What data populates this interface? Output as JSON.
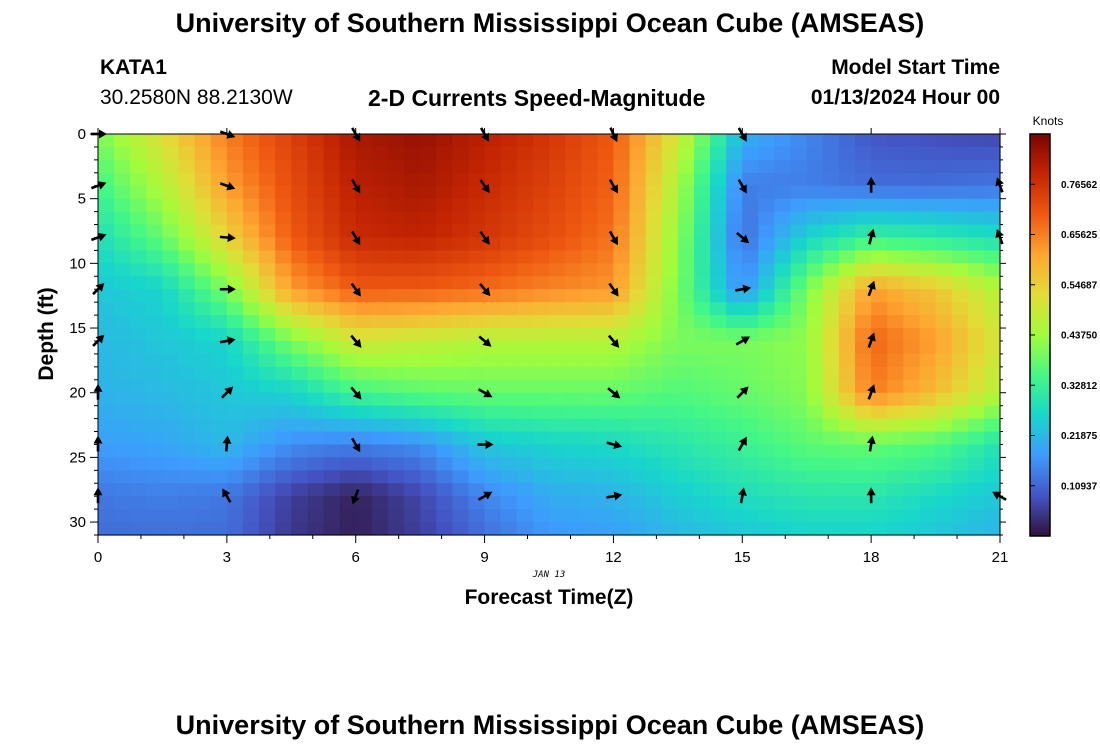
{
  "header": {
    "title": "University of Southern Mississippi Ocean Cube (AMSEAS)",
    "station": "KATA1",
    "coords": "30.2580N  88.2130W",
    "plot_title": "2-D Currents Speed-Magnitude",
    "model_start_label": "Model Start Time",
    "model_start_value": "01/13/2024 Hour 00"
  },
  "footer": {
    "title": "University of Southern Mississippi Ocean Cube (AMSEAS)"
  },
  "colors": {
    "colormap": [
      "#30123b",
      "#4454c4",
      "#3e9bfe",
      "#18d6cb",
      "#46f884",
      "#a2fc3c",
      "#e1dd37",
      "#fea632",
      "#ef5911",
      "#c42503",
      "#7a0403"
    ]
  },
  "chart_data": {
    "type": "heatmap",
    "title": "2-D Currents Speed-Magnitude",
    "xlabel": "Forecast Time(Z)",
    "ylabel": "Depth (ft)",
    "date_label": "JAN 13",
    "xlim": [
      0,
      21
    ],
    "ylim": [
      31,
      0
    ],
    "x_ticks": [
      0,
      3,
      6,
      9,
      12,
      15,
      18,
      21
    ],
    "y_ticks": [
      0,
      5,
      10,
      15,
      20,
      25,
      30
    ],
    "colorbar": {
      "label": "Knots",
      "range": [
        0,
        0.875
      ],
      "tick_values": [
        0.10937,
        0.21875,
        0.32812,
        0.4375,
        0.54687,
        0.65625,
        0.76562
      ],
      "tick_labels": [
        "0.10937",
        "0.21875",
        "0.32812",
        "0.43750",
        "0.54687",
        "0.65625",
        "0.76562"
      ]
    },
    "grid_time": [
      0,
      1.5,
      3,
      4.5,
      6,
      7.5,
      9,
      10.5,
      12,
      13.5,
      15,
      16.5,
      18,
      19.5,
      21
    ],
    "grid_depth": [
      0,
      4,
      8,
      12,
      16,
      20,
      24,
      28,
      31
    ],
    "speed_knots": [
      [
        0.4,
        0.52,
        0.66,
        0.74,
        0.82,
        0.84,
        0.8,
        0.76,
        0.7,
        0.5,
        0.21,
        0.15,
        0.09,
        0.08,
        0.07
      ],
      [
        0.34,
        0.46,
        0.62,
        0.72,
        0.8,
        0.82,
        0.78,
        0.74,
        0.69,
        0.45,
        0.14,
        0.14,
        0.12,
        0.12,
        0.13
      ],
      [
        0.28,
        0.38,
        0.54,
        0.7,
        0.78,
        0.79,
        0.76,
        0.72,
        0.67,
        0.42,
        0.12,
        0.26,
        0.33,
        0.31,
        0.28
      ],
      [
        0.24,
        0.26,
        0.4,
        0.62,
        0.7,
        0.7,
        0.68,
        0.65,
        0.63,
        0.4,
        0.16,
        0.4,
        0.62,
        0.56,
        0.46
      ],
      [
        0.22,
        0.24,
        0.26,
        0.4,
        0.5,
        0.48,
        0.46,
        0.46,
        0.46,
        0.4,
        0.4,
        0.42,
        0.69,
        0.62,
        0.5
      ],
      [
        0.21,
        0.22,
        0.24,
        0.26,
        0.34,
        0.37,
        0.38,
        0.38,
        0.38,
        0.36,
        0.38,
        0.41,
        0.66,
        0.58,
        0.46
      ],
      [
        0.18,
        0.19,
        0.22,
        0.16,
        0.14,
        0.16,
        0.24,
        0.26,
        0.27,
        0.3,
        0.33,
        0.37,
        0.38,
        0.36,
        0.29
      ],
      [
        0.13,
        0.14,
        0.13,
        0.06,
        0.02,
        0.07,
        0.15,
        0.2,
        0.21,
        0.25,
        0.28,
        0.3,
        0.3,
        0.27,
        0.24
      ],
      [
        0.12,
        0.12,
        0.12,
        0.05,
        0.02,
        0.06,
        0.12,
        0.17,
        0.18,
        0.22,
        0.24,
        0.26,
        0.26,
        0.24,
        0.21
      ]
    ],
    "vectors": [
      {
        "t": 0,
        "d": 0,
        "dir": 90
      },
      {
        "t": 0,
        "d": 4,
        "dir": 70
      },
      {
        "t": 0,
        "d": 8,
        "dir": 70
      },
      {
        "t": 0,
        "d": 12,
        "dir": 45
      },
      {
        "t": 0,
        "d": 16,
        "dir": 45
      },
      {
        "t": 0,
        "d": 20,
        "dir": 0
      },
      {
        "t": 0,
        "d": 24,
        "dir": 0
      },
      {
        "t": 0,
        "d": 28,
        "dir": 0
      },
      {
        "t": 3,
        "d": 0,
        "dir": 110
      },
      {
        "t": 3,
        "d": 4,
        "dir": 110
      },
      {
        "t": 3,
        "d": 8,
        "dir": 95
      },
      {
        "t": 3,
        "d": 12,
        "dir": 90
      },
      {
        "t": 3,
        "d": 16,
        "dir": 80
      },
      {
        "t": 3,
        "d": 20,
        "dir": 45
      },
      {
        "t": 3,
        "d": 24,
        "dir": 5
      },
      {
        "t": 3,
        "d": 28,
        "dir": 330
      },
      {
        "t": 6,
        "d": 0,
        "dir": 150
      },
      {
        "t": 6,
        "d": 4,
        "dir": 150
      },
      {
        "t": 6,
        "d": 8,
        "dir": 150
      },
      {
        "t": 6,
        "d": 12,
        "dir": 145
      },
      {
        "t": 6,
        "d": 16,
        "dir": 140
      },
      {
        "t": 6,
        "d": 20,
        "dir": 140
      },
      {
        "t": 6,
        "d": 24,
        "dir": 150
      },
      {
        "t": 6,
        "d": 28,
        "dir": 200
      },
      {
        "t": 9,
        "d": 0,
        "dir": 150
      },
      {
        "t": 9,
        "d": 4,
        "dir": 145
      },
      {
        "t": 9,
        "d": 8,
        "dir": 145
      },
      {
        "t": 9,
        "d": 12,
        "dir": 140
      },
      {
        "t": 9,
        "d": 16,
        "dir": 130
      },
      {
        "t": 9,
        "d": 20,
        "dir": 120
      },
      {
        "t": 9,
        "d": 24,
        "dir": 90
      },
      {
        "t": 9,
        "d": 28,
        "dir": 60
      },
      {
        "t": 12,
        "d": 0,
        "dir": 155
      },
      {
        "t": 12,
        "d": 4,
        "dir": 150
      },
      {
        "t": 12,
        "d": 8,
        "dir": 150
      },
      {
        "t": 12,
        "d": 12,
        "dir": 145
      },
      {
        "t": 12,
        "d": 16,
        "dir": 140
      },
      {
        "t": 12,
        "d": 20,
        "dir": 130
      },
      {
        "t": 12,
        "d": 24,
        "dir": 105
      },
      {
        "t": 12,
        "d": 28,
        "dir": 80
      },
      {
        "t": 15,
        "d": 0,
        "dir": 150
      },
      {
        "t": 15,
        "d": 4,
        "dir": 150
      },
      {
        "t": 15,
        "d": 8,
        "dir": 130
      },
      {
        "t": 15,
        "d": 12,
        "dir": 80
      },
      {
        "t": 15,
        "d": 16,
        "dir": 60
      },
      {
        "t": 15,
        "d": 20,
        "dir": 45
      },
      {
        "t": 15,
        "d": 24,
        "dir": 30
      },
      {
        "t": 15,
        "d": 28,
        "dir": 10
      },
      {
        "t": 18,
        "d": 4,
        "dir": 0
      },
      {
        "t": 18,
        "d": 8,
        "dir": 15
      },
      {
        "t": 18,
        "d": 12,
        "dir": 20
      },
      {
        "t": 18,
        "d": 16,
        "dir": 20
      },
      {
        "t": 18,
        "d": 20,
        "dir": 20
      },
      {
        "t": 18,
        "d": 24,
        "dir": 10
      },
      {
        "t": 18,
        "d": 28,
        "dir": 0
      },
      {
        "t": 21,
        "d": 4,
        "dir": 340
      },
      {
        "t": 21,
        "d": 8,
        "dir": 340
      },
      {
        "t": 21,
        "d": 28,
        "dir": 300
      }
    ]
  }
}
